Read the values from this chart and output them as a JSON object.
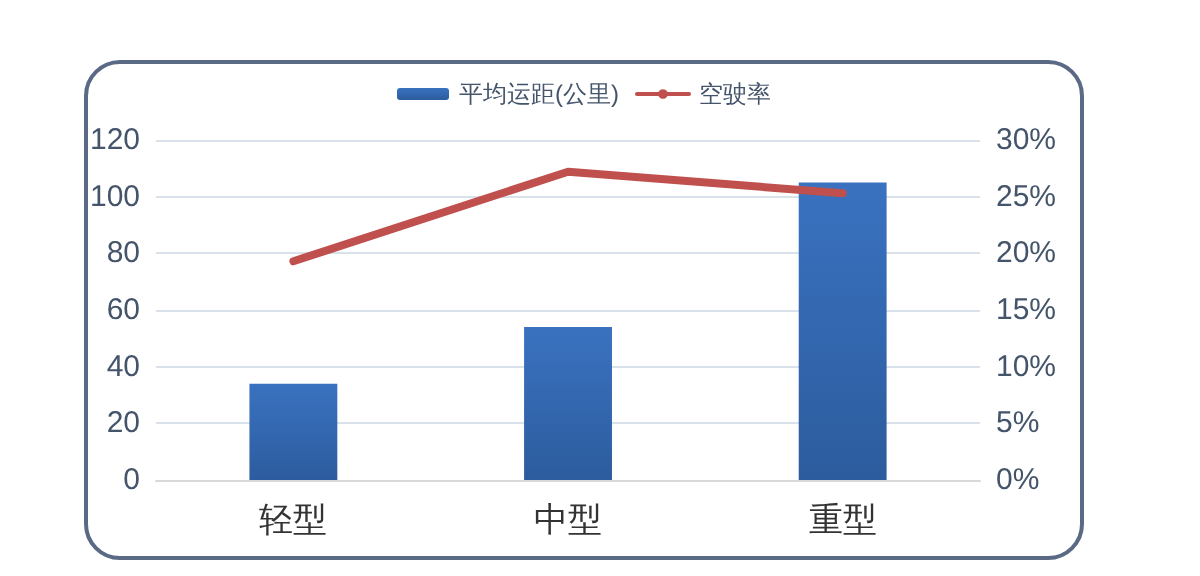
{
  "chart_data": {
    "type": "bar",
    "categories": [
      "轻型",
      "中型",
      "重型"
    ],
    "series": [
      {
        "name": "平均运距(公里)",
        "color": "#3a72c0",
        "values": [
          34,
          54,
          105
        ]
      },
      {
        "name": "空驶率",
        "type": "line",
        "axis": "y2",
        "color": "#c0504d",
        "values": [
          19.3,
          27.2,
          25.3
        ]
      }
    ],
    "ylim": [
      0,
      120
    ],
    "yticks": [
      0,
      20,
      40,
      60,
      80,
      100,
      120
    ],
    "y2lim": [
      0,
      30
    ],
    "y2ticks": [
      {
        "value": 0,
        "label": "0%"
      },
      {
        "value": 5,
        "label": "5%"
      },
      {
        "value": 10,
        "label": "10%"
      },
      {
        "value": 15,
        "label": "15%"
      },
      {
        "value": 20,
        "label": "20%"
      },
      {
        "value": 25,
        "label": "25%"
      },
      {
        "value": 30,
        "label": "30%"
      }
    ],
    "grid": "y",
    "legend": "top",
    "marker": "none",
    "line_style": "solid"
  }
}
